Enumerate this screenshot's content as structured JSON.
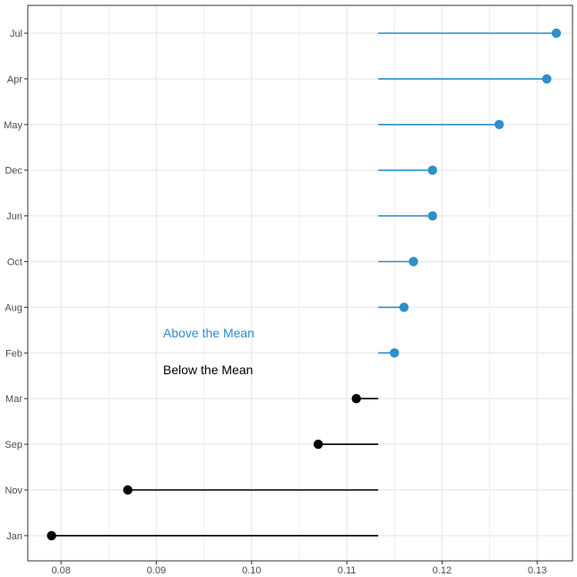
{
  "chart_data": {
    "type": "lollipop",
    "title": "",
    "xlabel": "",
    "ylabel": "",
    "mean": 0.1133,
    "xlim": [
      0.0765,
      0.1337
    ],
    "xticks": [
      0.08,
      0.09,
      0.1,
      0.11,
      0.12,
      0.13
    ],
    "xtick_labels": [
      "0.08",
      "0.09",
      "0.10",
      "0.11",
      "0.12",
      "0.13"
    ],
    "grid": true,
    "categories": [
      "Jul",
      "Apr",
      "May",
      "Dec",
      "Jun",
      "Oct",
      "Aug",
      "Feb",
      "Mar",
      "Sep",
      "Nov",
      "Jan"
    ],
    "values": [
      0.132,
      0.131,
      0.126,
      0.119,
      0.119,
      0.117,
      0.116,
      0.115,
      0.111,
      0.107,
      0.087,
      0.079
    ],
    "colors": {
      "above": "#2e8fc9",
      "below": "#000000",
      "grid": "#ebebeb",
      "panel_border": "#333333",
      "tick": "#4d4d4d"
    },
    "annotations": [
      {
        "text": "Above the Mean",
        "group": "above"
      },
      {
        "text": "Below the Mean",
        "group": "below"
      }
    ]
  }
}
